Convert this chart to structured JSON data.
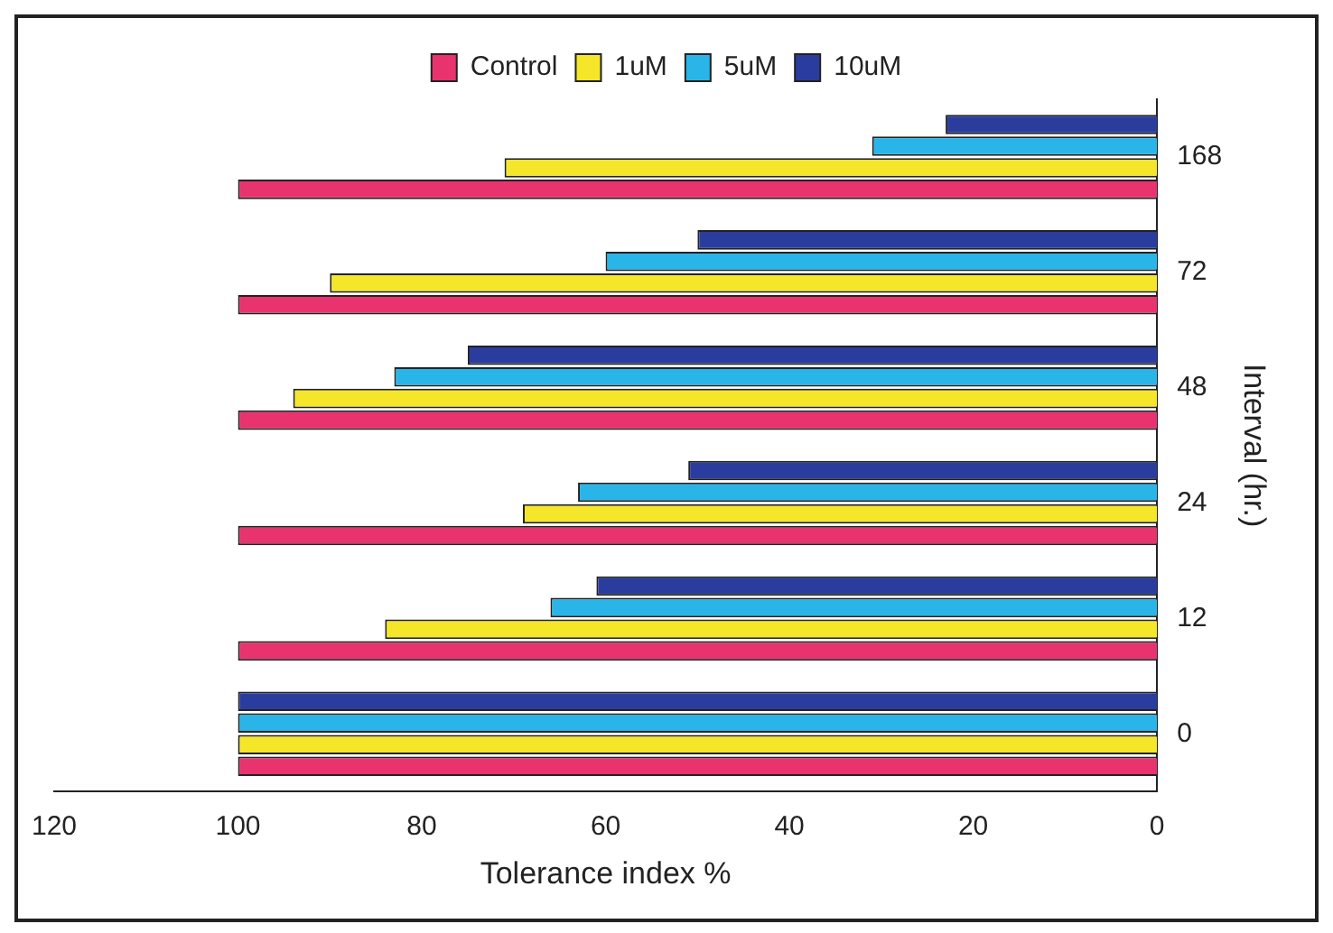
{
  "chart_data": {
    "type": "bar",
    "orientation": "horizontal",
    "categories": [
      "168",
      "72",
      "48",
      "24",
      "12",
      "0"
    ],
    "series": [
      {
        "name": "Control",
        "color": "#e8336e",
        "values": [
          100,
          100,
          100,
          100,
          100,
          100
        ]
      },
      {
        "name": "1uM",
        "color": "#f5e62a",
        "values": [
          71,
          90,
          94,
          69,
          84,
          100
        ]
      },
      {
        "name": "5uM",
        "color": "#2ab5e8",
        "values": [
          31,
          60,
          83,
          63,
          66,
          100
        ]
      },
      {
        "name": "10uM",
        "color": "#2a3d9e",
        "values": [
          23,
          50,
          75,
          51,
          61,
          100
        ]
      }
    ],
    "xlim": [
      120,
      0
    ],
    "xticks": [
      120,
      100,
      80,
      60,
      40,
      20,
      0
    ],
    "xlabel": "Tolerance index %",
    "ylabel": "Interval (hr.)",
    "legend": "top",
    "grid": false
  }
}
